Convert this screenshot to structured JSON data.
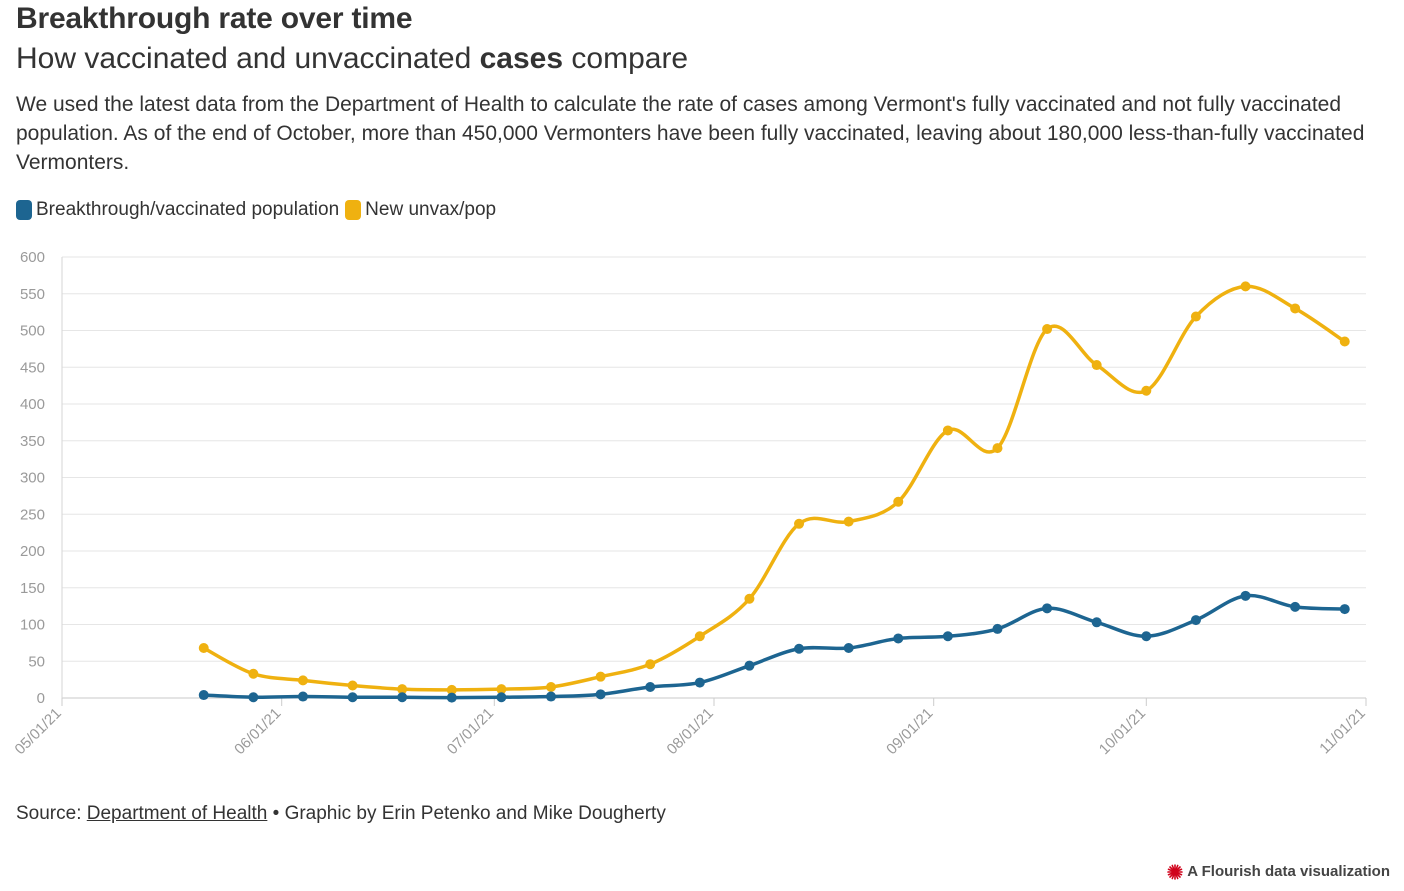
{
  "header": {
    "title": "Breakthrough rate over time",
    "subtitle_pre": "How vaccinated and unvaccinated ",
    "subtitle_bold": "cases",
    "subtitle_post": " compare",
    "description": "We used the latest data from the Department of Health to calculate the rate of cases among Vermont's fully vaccinated and not fully vaccinated population. As of the end of October, more than 450,000 Vermonters have been fully vaccinated, leaving about 180,000 less-than-fully vaccinated Vermonters."
  },
  "legend": [
    {
      "label": "Breakthrough/vaccinated population",
      "color": "#1d6591"
    },
    {
      "label": "New unvax/pop",
      "color": "#efb110"
    }
  ],
  "footer": {
    "source_prefix": "Source: ",
    "source_link": "Department of Health",
    "credit": " • Graphic by Erin Petenko and Mike Dougherty",
    "flourish": "A Flourish data visualization"
  },
  "chart_data": {
    "type": "line",
    "title": "Breakthrough rate over time",
    "xlabel": "",
    "ylabel": "",
    "ylim": [
      0,
      600
    ],
    "xlim": [
      "2021-05-01",
      "2021-11-01"
    ],
    "yticks": [
      0,
      50,
      100,
      150,
      200,
      250,
      300,
      350,
      400,
      450,
      500,
      550,
      600
    ],
    "xticks": [
      "2021-05-01",
      "2021-06-01",
      "2021-07-01",
      "2021-08-01",
      "2021-09-01",
      "2021-10-01",
      "2021-11-01"
    ],
    "xtick_labels": [
      "05/01/21",
      "06/01/21",
      "07/01/21",
      "08/01/21",
      "09/01/21",
      "10/01/21",
      "11/01/21"
    ],
    "grid": true,
    "legend_position": "top-left",
    "x": [
      "2021-05-21",
      "2021-05-28",
      "2021-06-04",
      "2021-06-11",
      "2021-06-18",
      "2021-06-25",
      "2021-07-02",
      "2021-07-09",
      "2021-07-16",
      "2021-07-23",
      "2021-07-30",
      "2021-08-06",
      "2021-08-13",
      "2021-08-20",
      "2021-08-27",
      "2021-09-03",
      "2021-09-10",
      "2021-09-17",
      "2021-09-24",
      "2021-10-01",
      "2021-10-08",
      "2021-10-15",
      "2021-10-22",
      "2021-10-29"
    ],
    "series": [
      {
        "name": "Breakthrough/vaccinated population",
        "color": "#1d6591",
        "values": [
          4,
          1,
          2,
          1,
          1,
          0.5,
          1,
          2,
          5,
          15,
          21,
          44,
          67,
          68,
          81,
          84,
          94,
          122,
          103,
          84,
          106,
          139,
          124,
          121
        ]
      },
      {
        "name": "New unvax/pop",
        "color": "#efb110",
        "values": [
          68,
          33,
          24,
          17,
          12,
          11,
          12,
          15,
          29,
          46,
          84,
          135,
          237,
          240,
          267,
          364,
          340,
          502,
          453,
          418,
          519,
          560,
          530,
          485
        ]
      }
    ]
  }
}
